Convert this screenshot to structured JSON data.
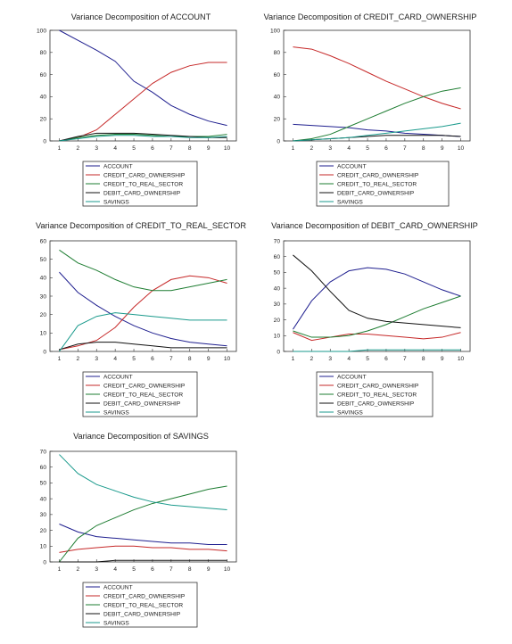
{
  "colors": {
    "ACCOUNT": "#1f1f8f",
    "CREDIT_CARD_OWNERSHIP": "#c62828",
    "CREDIT_TO_REAL_SECTOR": "#1e7d32",
    "DEBIT_CARD_OWNERSHIP": "#111111",
    "SAVINGS": "#1a9a8c"
  },
  "chart_data": [
    {
      "type": "line",
      "title": "Variance Decomposition of ACCOUNT",
      "x": [
        1,
        2,
        3,
        4,
        5,
        6,
        7,
        8,
        9,
        10
      ],
      "xlim": [
        0.5,
        10.5
      ],
      "ylim": [
        0,
        100
      ],
      "yticks": [
        0,
        20,
        40,
        60,
        80,
        100
      ],
      "legend": "below",
      "grid": false,
      "series": [
        {
          "name": "ACCOUNT",
          "values": [
            100,
            91,
            82,
            72,
            54,
            44,
            32,
            24,
            18,
            14
          ]
        },
        {
          "name": "CREDIT_CARD_OWNERSHIP",
          "values": [
            0,
            3,
            10,
            24,
            38,
            52,
            62,
            68,
            71,
            71
          ]
        },
        {
          "name": "CREDIT_TO_REAL_SECTOR",
          "values": [
            0,
            3,
            5,
            6,
            6,
            5,
            4,
            4,
            4,
            6
          ]
        },
        {
          "name": "DEBIT_CARD_OWNERSHIP",
          "values": [
            0,
            4,
            7,
            7,
            7,
            6,
            5,
            4,
            3,
            3
          ]
        },
        {
          "name": "SAVINGS",
          "values": [
            0,
            2,
            4,
            5,
            5,
            4,
            4,
            3,
            3,
            4
          ]
        }
      ]
    },
    {
      "type": "line",
      "title": "Variance Decomposition of CREDIT_CARD_OWNERSHIP",
      "x": [
        1,
        2,
        3,
        4,
        5,
        6,
        7,
        8,
        9,
        10
      ],
      "xlim": [
        0.5,
        10.5
      ],
      "ylim": [
        0,
        100
      ],
      "yticks": [
        0,
        20,
        40,
        60,
        80,
        100
      ],
      "legend": "below",
      "grid": false,
      "series": [
        {
          "name": "ACCOUNT",
          "values": [
            15,
            14,
            13,
            12,
            10,
            9,
            7,
            6,
            5,
            4
          ]
        },
        {
          "name": "CREDIT_CARD_OWNERSHIP",
          "values": [
            85,
            83,
            77,
            70,
            62,
            54,
            47,
            40,
            34,
            29
          ]
        },
        {
          "name": "CREDIT_TO_REAL_SECTOR",
          "values": [
            0,
            2,
            6,
            13,
            20,
            27,
            34,
            40,
            45,
            48
          ]
        },
        {
          "name": "DEBIT_CARD_OWNERSHIP",
          "values": [
            0,
            1,
            2,
            3,
            4,
            5,
            5,
            5,
            5,
            4
          ]
        },
        {
          "name": "SAVINGS",
          "values": [
            0,
            1,
            2,
            3,
            5,
            7,
            9,
            11,
            13,
            16
          ]
        }
      ]
    },
    {
      "type": "line",
      "title": "Variance Decomposition of CREDIT_TO_REAL_SECTOR",
      "x": [
        1,
        2,
        3,
        4,
        5,
        6,
        7,
        8,
        9,
        10
      ],
      "xlim": [
        0.5,
        10.5
      ],
      "ylim": [
        0,
        60
      ],
      "yticks": [
        0,
        10,
        20,
        30,
        40,
        50,
        60
      ],
      "legend": "below",
      "grid": false,
      "series": [
        {
          "name": "ACCOUNT",
          "values": [
            43,
            32,
            25,
            19,
            14,
            10,
            7,
            5,
            4,
            3
          ]
        },
        {
          "name": "CREDIT_CARD_OWNERSHIP",
          "values": [
            1,
            3,
            6,
            13,
            24,
            33,
            39,
            41,
            40,
            37
          ]
        },
        {
          "name": "CREDIT_TO_REAL_SECTOR",
          "values": [
            55,
            48,
            44,
            39,
            35,
            33,
            33,
            35,
            37,
            39
          ]
        },
        {
          "name": "DEBIT_CARD_OWNERSHIP",
          "values": [
            1,
            4,
            5,
            5,
            4,
            3,
            2,
            2,
            2,
            2
          ]
        },
        {
          "name": "SAVINGS",
          "values": [
            0,
            14,
            19,
            21,
            20,
            19,
            18,
            17,
            17,
            17
          ]
        }
      ]
    },
    {
      "type": "line",
      "title": "Variance Decomposition of DEBIT_CARD_OWNERSHIP",
      "x": [
        1,
        2,
        3,
        4,
        5,
        6,
        7,
        8,
        9,
        10
      ],
      "xlim": [
        0.5,
        10.5
      ],
      "ylim": [
        0,
        70
      ],
      "yticks": [
        0,
        10,
        20,
        30,
        40,
        50,
        60,
        70
      ],
      "legend": "below",
      "grid": false,
      "series": [
        {
          "name": "ACCOUNT",
          "values": [
            14,
            32,
            44,
            51,
            53,
            52,
            49,
            44,
            39,
            35
          ]
        },
        {
          "name": "CREDIT_CARD_OWNERSHIP",
          "values": [
            12,
            7,
            9,
            11,
            11,
            10,
            9,
            8,
            9,
            12
          ]
        },
        {
          "name": "CREDIT_TO_REAL_SECTOR",
          "values": [
            13,
            9,
            9,
            10,
            13,
            17,
            22,
            27,
            31,
            35
          ]
        },
        {
          "name": "DEBIT_CARD_OWNERSHIP",
          "values": [
            61,
            51,
            38,
            26,
            21,
            19,
            18,
            17,
            16,
            15
          ]
        },
        {
          "name": "SAVINGS",
          "values": [
            0,
            0,
            0,
            0,
            1,
            1,
            1,
            1,
            1,
            1
          ]
        }
      ]
    },
    {
      "type": "line",
      "title": "Variance Decomposition of SAVINGS",
      "x": [
        1,
        2,
        3,
        4,
        5,
        6,
        7,
        8,
        9,
        10
      ],
      "xlim": [
        0.5,
        10.5
      ],
      "ylim": [
        0,
        70
      ],
      "yticks": [
        0,
        10,
        20,
        30,
        40,
        50,
        60,
        70
      ],
      "legend": "below",
      "grid": false,
      "series": [
        {
          "name": "ACCOUNT",
          "values": [
            24,
            19,
            16,
            15,
            14,
            13,
            12,
            12,
            11,
            11
          ]
        },
        {
          "name": "CREDIT_CARD_OWNERSHIP",
          "values": [
            6,
            8,
            9,
            10,
            10,
            9,
            9,
            8,
            8,
            7
          ]
        },
        {
          "name": "CREDIT_TO_REAL_SECTOR",
          "values": [
            0,
            15,
            23,
            28,
            33,
            37,
            40,
            43,
            46,
            48
          ]
        },
        {
          "name": "DEBIT_CARD_OWNERSHIP",
          "values": [
            0,
            0,
            0,
            1,
            1,
            1,
            1,
            1,
            1,
            1
          ]
        },
        {
          "name": "SAVINGS",
          "values": [
            68,
            56,
            49,
            45,
            41,
            38,
            36,
            35,
            34,
            33
          ]
        }
      ]
    }
  ]
}
